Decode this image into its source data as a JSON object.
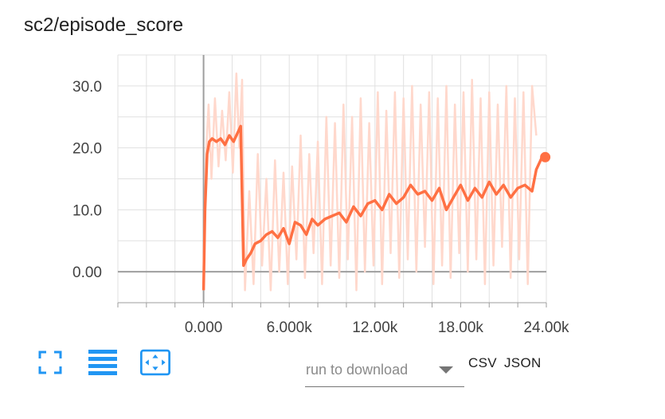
{
  "title": "sc2/episode_score",
  "toolbar": {
    "fullscreen_icon": "fullscreen-icon",
    "log_scale_icon": "lines-icon",
    "fit_domain_icon": "fit-domain-icon",
    "accent": "#2196f3"
  },
  "download": {
    "placeholder": "run to download",
    "csv_label": "CSV",
    "json_label": "JSON"
  },
  "colors": {
    "series": "#ff7043",
    "raw": "#ffd8cc",
    "grid": "#e0e0e0",
    "axis": "#9e9e9e"
  },
  "chart_data": {
    "type": "line",
    "title": "sc2/episode_score",
    "xlim": [
      -6000,
      24000
    ],
    "ylim": [
      -5,
      35
    ],
    "x_ticks": [
      "0.000",
      "6.000k",
      "12.00k",
      "18.00k",
      "24.00k"
    ],
    "y_ticks": [
      "0.00",
      "10.0",
      "20.0",
      "30.0"
    ],
    "series": [
      {
        "role": "smoothed",
        "x": [
          0,
          100,
          250,
          400,
          600,
          900,
          1200,
          1500,
          1800,
          2100,
          2400,
          2600,
          2800,
          3000,
          3300,
          3600,
          4000,
          4400,
          4800,
          5200,
          5600,
          6000,
          6400,
          6800,
          7200,
          7600,
          8000,
          8500,
          9000,
          9500,
          10000,
          10500,
          11000,
          11500,
          12000,
          12500,
          13000,
          13500,
          14000,
          14500,
          15000,
          15500,
          16000,
          16500,
          17000,
          17500,
          18000,
          18500,
          19000,
          19500,
          20000,
          20500,
          21000,
          21500,
          22000,
          22500,
          23000,
          23300,
          23700
        ],
        "y": [
          -3,
          10,
          19,
          21,
          21.5,
          21,
          21.5,
          20.5,
          22,
          21,
          22.5,
          23.5,
          1,
          2,
          3,
          4.5,
          5,
          6,
          6.5,
          5.5,
          7,
          4.5,
          8,
          7.5,
          6,
          8.5,
          7.5,
          8.5,
          9,
          9.5,
          8,
          10.5,
          9,
          11,
          11.5,
          10,
          12.5,
          11,
          12,
          14,
          12.5,
          13,
          11.5,
          13.5,
          10,
          12,
          14,
          11.5,
          13.5,
          12,
          14.5,
          12.5,
          14,
          12,
          13.5,
          14,
          13,
          16.5,
          18.5
        ]
      },
      {
        "role": "raw",
        "x": [
          0,
          150,
          350,
          550,
          800,
          1050,
          1300,
          1550,
          1800,
          2050,
          2300,
          2500,
          2700,
          2900,
          3200,
          3500,
          3800,
          4100,
          4400,
          4700,
          5000,
          5300,
          5600,
          5900,
          6200,
          6500,
          6800,
          7100,
          7400,
          7700,
          8000,
          8300,
          8600,
          8900,
          9200,
          9500,
          9800,
          10100,
          10400,
          10700,
          11000,
          11300,
          11600,
          11900,
          12200,
          12500,
          12800,
          13100,
          13400,
          13700,
          14000,
          14300,
          14600,
          14900,
          15200,
          15500,
          15800,
          16100,
          16400,
          16700,
          17000,
          17300,
          17600,
          17900,
          18200,
          18500,
          18800,
          19100,
          19400,
          19700,
          20000,
          20300,
          20600,
          20900,
          21200,
          21500,
          21800,
          22100,
          22400,
          22700,
          23000,
          23300
        ],
        "y": [
          -3,
          18,
          27,
          15,
          28,
          17,
          26,
          18,
          29,
          16,
          32,
          20,
          31,
          -3,
          13,
          -2,
          19,
          1,
          15,
          -3,
          18,
          0,
          16,
          -2,
          17,
          2,
          22,
          -1,
          19,
          3,
          21,
          -2,
          25,
          1,
          24,
          -1,
          27,
          2,
          25,
          -3,
          28,
          0,
          24,
          1,
          29,
          -2,
          26,
          3,
          29,
          -1,
          28,
          2,
          30,
          0,
          27,
          4,
          29,
          -2,
          28,
          1,
          30,
          -1,
          27,
          3,
          29,
          0,
          31,
          2,
          28,
          -2,
          29,
          1,
          27,
          4,
          30,
          -1,
          28,
          2,
          29,
          -2,
          30,
          22
        ]
      }
    ]
  }
}
